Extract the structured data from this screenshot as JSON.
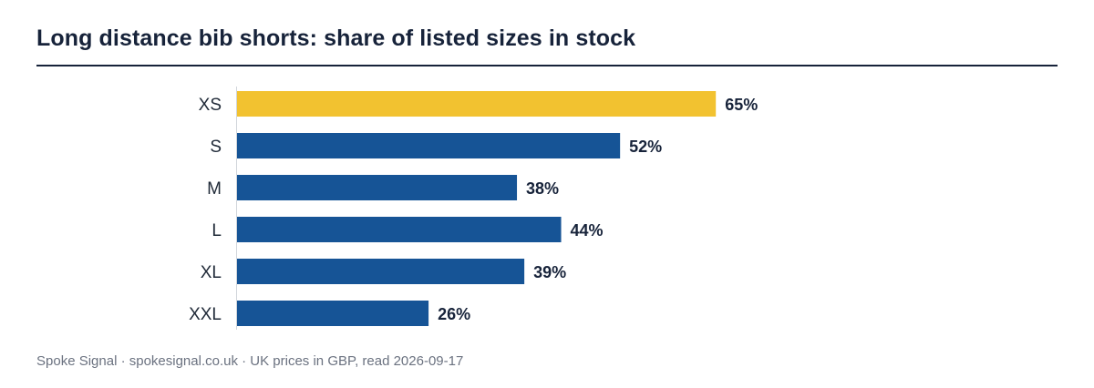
{
  "title": "Long distance bib shorts: share of listed sizes in stock",
  "source": "Spoke Signal · spokesignal.co.uk · UK prices in GBP, read 2026-09-17",
  "colors": {
    "highlight": "#F2C230",
    "bar": "#165496",
    "axis": "#d1d5db",
    "label": "#17233a",
    "category": "#1f2937"
  },
  "chart_data": {
    "type": "bar",
    "orientation": "horizontal",
    "categories": [
      "XS",
      "S",
      "M",
      "L",
      "XL",
      "XXL"
    ],
    "values": [
      65,
      52,
      38,
      44,
      39,
      26
    ],
    "value_labels": [
      "65%",
      "52%",
      "38%",
      "44%",
      "39%",
      "26%"
    ],
    "highlight_index": 0,
    "unit": "%",
    "xlim": [
      0,
      100
    ],
    "grid": false,
    "legend": "none"
  }
}
